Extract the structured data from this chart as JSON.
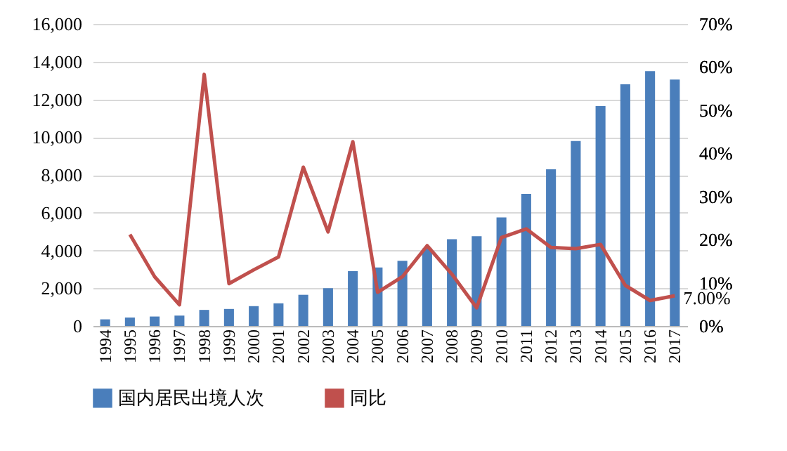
{
  "chart_data": {
    "type": "bar",
    "categories": [
      "1994",
      "1995",
      "1996",
      "1997",
      "1998",
      "1999",
      "2000",
      "2001",
      "2002",
      "2003",
      "2004",
      "2005",
      "2006",
      "2007",
      "2008",
      "2009",
      "2010",
      "2011",
      "2012",
      "2013",
      "2014",
      "2015",
      "2016",
      "2017"
    ],
    "series": [
      {
        "name": "国内居民出境人次",
        "color": "#4a7ebb",
        "values": [
          350,
          450,
          500,
          550,
          850,
          900,
          1050,
          1200,
          1650,
          2000,
          2900,
          3100,
          3450,
          4100,
          4600,
          4750,
          5750,
          7000,
          8300,
          9800,
          11650,
          12800,
          13500,
          13050
        ]
      },
      {
        "name": "同比",
        "type": "line",
        "axis": "y2",
        "color": "#c0504d",
        "values": [
          null,
          21.2,
          11.4,
          4.9,
          58.3,
          9.8,
          13.0,
          16.0,
          36.8,
          21.8,
          42.7,
          7.8,
          11.4,
          18.6,
          12.0,
          4.2,
          20.5,
          22.5,
          18.2,
          17.9,
          18.9,
          9.4,
          5.9,
          7.0
        ],
        "value_labels": [
          null,
          null,
          null,
          null,
          null,
          null,
          null,
          null,
          null,
          null,
          null,
          null,
          null,
          null,
          null,
          null,
          null,
          null,
          null,
          null,
          null,
          null,
          null,
          "7.00%"
        ]
      }
    ],
    "ylim": [
      0,
      16000
    ],
    "yticks": [
      {
        "value": 0,
        "label": "0"
      },
      {
        "value": 2000,
        "label": "2,000"
      },
      {
        "value": 4000,
        "label": "4,000"
      },
      {
        "value": 6000,
        "label": "6,000"
      },
      {
        "value": 8000,
        "label": "8,000"
      },
      {
        "value": 10000,
        "label": "10,000"
      },
      {
        "value": 12000,
        "label": "12,000"
      },
      {
        "value": 14000,
        "label": "14,000"
      },
      {
        "value": 16000,
        "label": "16,000"
      }
    ],
    "y2lim": [
      0,
      70
    ],
    "y2ticks": [
      {
        "value": 0,
        "label": "0%"
      },
      {
        "value": 10,
        "label": "10%"
      },
      {
        "value": 20,
        "label": "20%"
      },
      {
        "value": 30,
        "label": "30%"
      },
      {
        "value": 40,
        "label": "40%"
      },
      {
        "value": 50,
        "label": "50%"
      },
      {
        "value": 60,
        "label": "60%"
      },
      {
        "value": 70,
        "label": "70%"
      }
    ],
    "grid": "y",
    "legend": "bottom"
  }
}
